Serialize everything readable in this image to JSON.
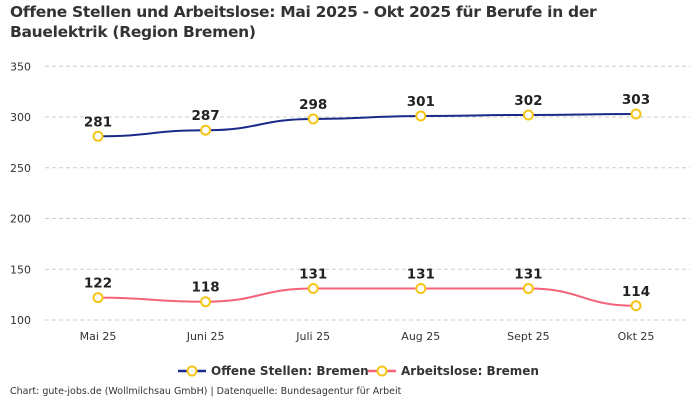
{
  "chart_data": {
    "type": "line",
    "title": "Offene Stellen und Arbeitslose: Mai 2025 - Okt 2025 für Berufe in der Bauelektrik (Region Bremen)",
    "categories": [
      "Mai 25",
      "Juni 25",
      "Juli 25",
      "Aug 25",
      "Sept 25",
      "Okt 25"
    ],
    "y_ticks": [
      100,
      150,
      200,
      250,
      300,
      350
    ],
    "ylim": [
      95,
      350
    ],
    "grid": true,
    "legend_position": "bottom",
    "series": [
      {
        "name": "Offene Stellen: Bremen",
        "values": [
          281,
          287,
          298,
          301,
          302,
          303
        ],
        "color": "#1a2a8a"
      },
      {
        "name": "Arbeitslose: Bremen",
        "values": [
          122,
          118,
          131,
          131,
          131,
          114
        ],
        "color": "#f4637a"
      }
    ],
    "marker_color": "#f5c518",
    "smooth": true
  },
  "credit": "Chart: gute-jobs.de (Wollmilchsau GmbH) | Datenquelle: Bundesagentur für Arbeit"
}
